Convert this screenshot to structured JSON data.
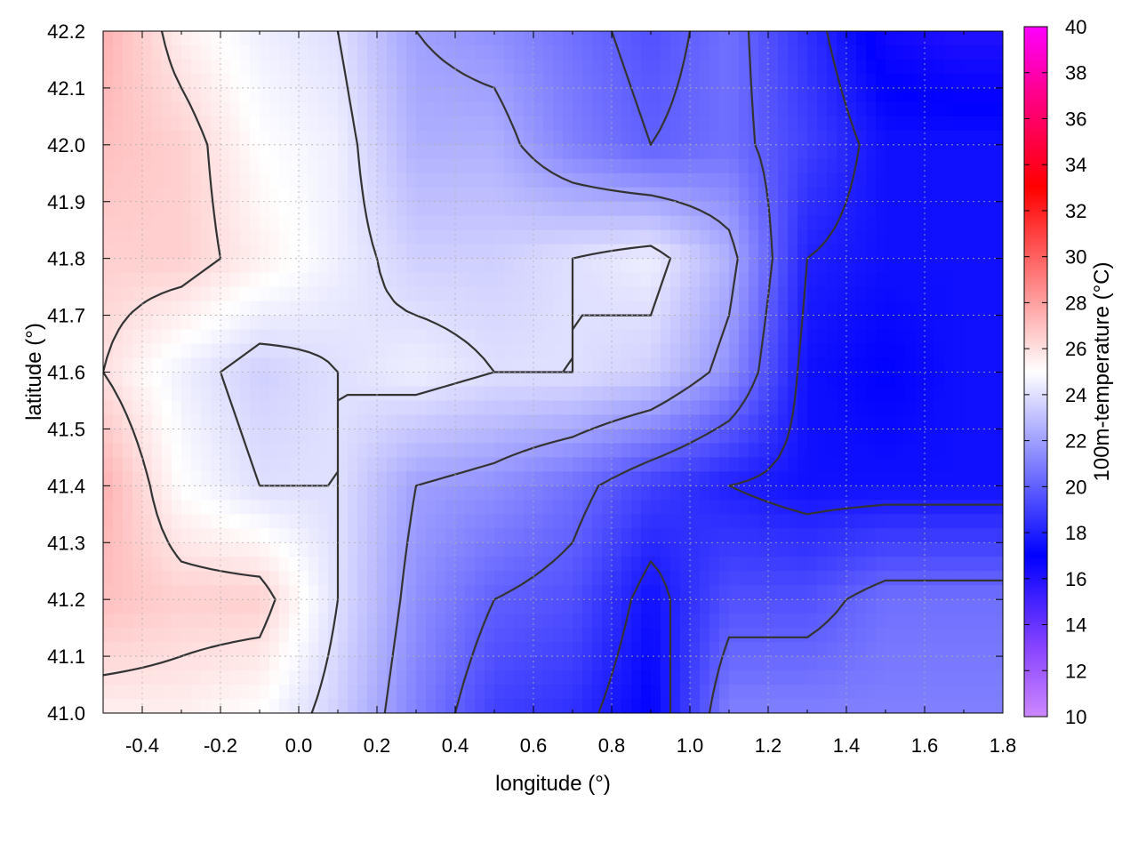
{
  "chart_data": {
    "type": "heatmap",
    "title": "",
    "xlabel": "longitude (°)",
    "ylabel": "latitude (°)",
    "xlim": [
      -0.5,
      1.8
    ],
    "ylim": [
      41.0,
      42.2
    ],
    "x_ticks": [
      {
        "value": -0.4,
        "label": "-0.4"
      },
      {
        "value": -0.2,
        "label": "-0.2"
      },
      {
        "value": 0.0,
        "label": "0.0"
      },
      {
        "value": 0.2,
        "label": "0.2"
      },
      {
        "value": 0.4,
        "label": "0.4"
      },
      {
        "value": 0.6,
        "label": "0.6"
      },
      {
        "value": 0.8,
        "label": "0.8"
      },
      {
        "value": 1.0,
        "label": "1.0"
      },
      {
        "value": 1.2,
        "label": "1.2"
      },
      {
        "value": 1.4,
        "label": "1.4"
      },
      {
        "value": 1.6,
        "label": "1.6"
      },
      {
        "value": 1.8,
        "label": "1.8"
      }
    ],
    "y_ticks": [
      {
        "value": 41.0,
        "label": "41.0"
      },
      {
        "value": 41.1,
        "label": "41.1"
      },
      {
        "value": 41.2,
        "label": "41.2"
      },
      {
        "value": 41.3,
        "label": "41.3"
      },
      {
        "value": 41.4,
        "label": "41.4"
      },
      {
        "value": 41.5,
        "label": "41.5"
      },
      {
        "value": 41.6,
        "label": "41.6"
      },
      {
        "value": 41.7,
        "label": "41.7"
      },
      {
        "value": 41.8,
        "label": "41.8"
      },
      {
        "value": 41.9,
        "label": "41.9"
      },
      {
        "value": 42.0,
        "label": "42.0"
      },
      {
        "value": 42.1,
        "label": "42.1"
      },
      {
        "value": 42.2,
        "label": "42.2"
      }
    ],
    "grid": true,
    "colorbar": {
      "label": "100m-temperature (°C)",
      "range": [
        10,
        40
      ],
      "ticks": [
        {
          "value": 10,
          "label": "10"
        },
        {
          "value": 12,
          "label": "12"
        },
        {
          "value": 14,
          "label": "14"
        },
        {
          "value": 16,
          "label": "16"
        },
        {
          "value": 18,
          "label": "18"
        },
        {
          "value": 20,
          "label": "20"
        },
        {
          "value": 22,
          "label": "22"
        },
        {
          "value": 24,
          "label": "24"
        },
        {
          "value": 26,
          "label": "26"
        },
        {
          "value": 28,
          "label": "28"
        },
        {
          "value": 30,
          "label": "30"
        },
        {
          "value": 32,
          "label": "32"
        },
        {
          "value": 34,
          "label": "34"
        },
        {
          "value": 36,
          "label": "36"
        },
        {
          "value": 38,
          "label": "38"
        },
        {
          "value": 40,
          "label": "40"
        }
      ],
      "color_stops": [
        {
          "value": 10,
          "color": "#cc88ff"
        },
        {
          "value": 13,
          "color": "#8844ff"
        },
        {
          "value": 17,
          "color": "#0000ff"
        },
        {
          "value": 21,
          "color": "#8080ff"
        },
        {
          "value": 25,
          "color": "#ffffff"
        },
        {
          "value": 29,
          "color": "#ff8080"
        },
        {
          "value": 33,
          "color": "#ff0000"
        },
        {
          "value": 37,
          "color": "#ff0088"
        },
        {
          "value": 40,
          "color": "#ff00ff"
        }
      ]
    },
    "field_samples": {
      "lon": [
        -0.5,
        -0.3,
        -0.1,
        0.1,
        0.3,
        0.5,
        0.7,
        0.9,
        1.1,
        1.3,
        1.5,
        1.7,
        1.8
      ],
      "lat": [
        42.2,
        42.0,
        41.8,
        41.6,
        41.4,
        41.2,
        41.0
      ],
      "temperature": [
        [
          27.5,
          25.5,
          24.5,
          24.0,
          22.0,
          21.5,
          20.5,
          19.5,
          20.5,
          18.5,
          16.5,
          16.0,
          16.0
        ],
        [
          27.0,
          26.5,
          25.0,
          24.5,
          22.5,
          22.5,
          21.0,
          20.0,
          20.5,
          19.0,
          17.5,
          17.5,
          17.5
        ],
        [
          26.5,
          26.5,
          25.5,
          24.5,
          23.5,
          23.5,
          24.0,
          24.5,
          22.5,
          18.0,
          17.5,
          17.5,
          17.5
        ],
        [
          26.0,
          24.5,
          23.5,
          24.0,
          24.5,
          24.0,
          24.0,
          23.5,
          21.5,
          17.5,
          17.0,
          17.5,
          17.5
        ],
        [
          27.5,
          25.0,
          24.0,
          24.0,
          22.0,
          21.5,
          20.5,
          19.0,
          18.0,
          17.5,
          17.5,
          17.5,
          17.5
        ],
        [
          27.0,
          26.5,
          26.5,
          24.0,
          21.5,
          20.0,
          19.5,
          17.5,
          19.5,
          19.5,
          20.5,
          20.5,
          20.5
        ],
        [
          25.5,
          25.5,
          25.0,
          23.5,
          21.0,
          19.0,
          18.5,
          17.0,
          21.0,
          21.0,
          21.0,
          21.0,
          21.0
        ]
      ]
    }
  }
}
